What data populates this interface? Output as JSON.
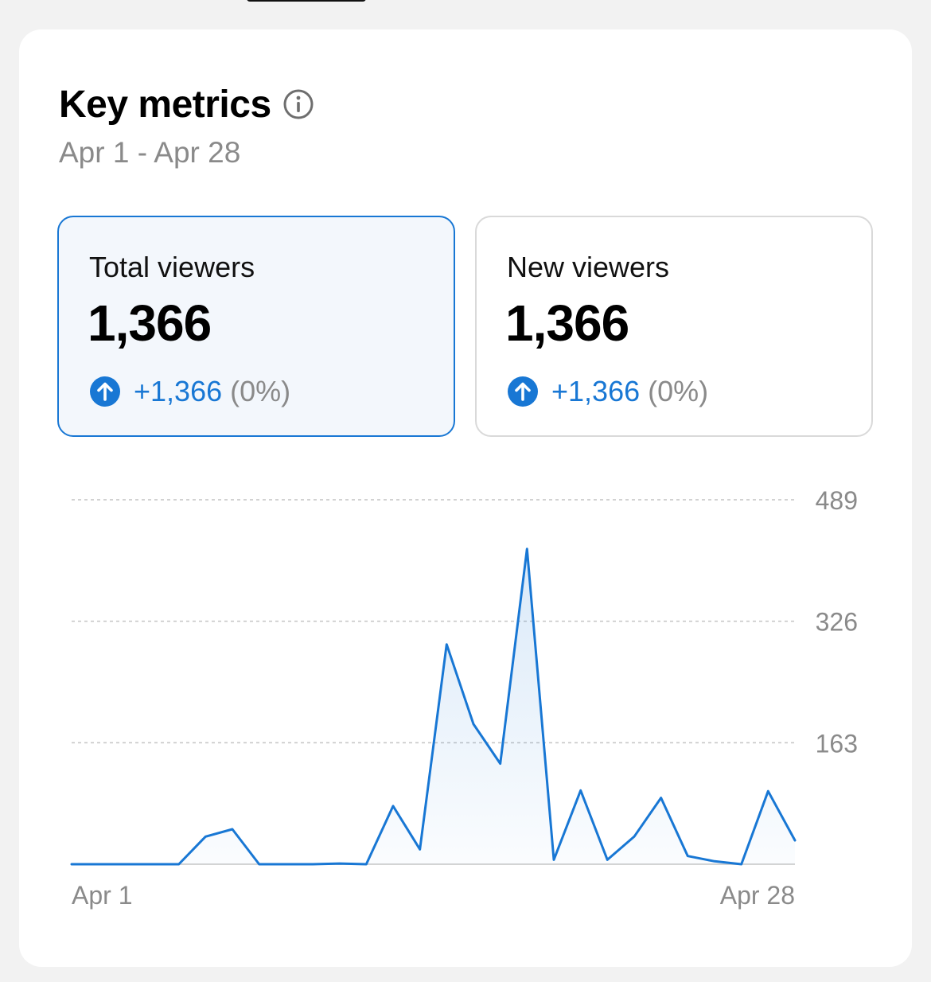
{
  "header": {
    "title": "Key metrics",
    "date_range": "Apr 1 - Apr 28"
  },
  "icons": {
    "info": "info-circle-icon",
    "change_up": "arrow-up-circle-icon"
  },
  "colors": {
    "accent": "#1877d4",
    "selected_card_bg": "#f3f7fc",
    "muted_text": "#8a8a8a",
    "gridline": "#c4c4c4"
  },
  "metrics": [
    {
      "label": "Total viewers",
      "value": "1,366",
      "change": "+1,366",
      "change_pct": "(0%)",
      "selected": true
    },
    {
      "label": "New viewers",
      "value": "1,366",
      "change": "+1,366",
      "change_pct": "(0%)",
      "selected": false
    }
  ],
  "chart_data": {
    "type": "area",
    "x_start_label": "Apr 1",
    "x_end_label": "Apr 28",
    "y_ticks": [
      163,
      326,
      489
    ],
    "ylim": [
      0,
      489
    ],
    "grid": true,
    "values": [
      0,
      0,
      0,
      0,
      0,
      37,
      47,
      0,
      0,
      0,
      1,
      0,
      78,
      20,
      295,
      188,
      135,
      423,
      6,
      99,
      6,
      37,
      89,
      11,
      4,
      0,
      98,
      32
    ]
  }
}
